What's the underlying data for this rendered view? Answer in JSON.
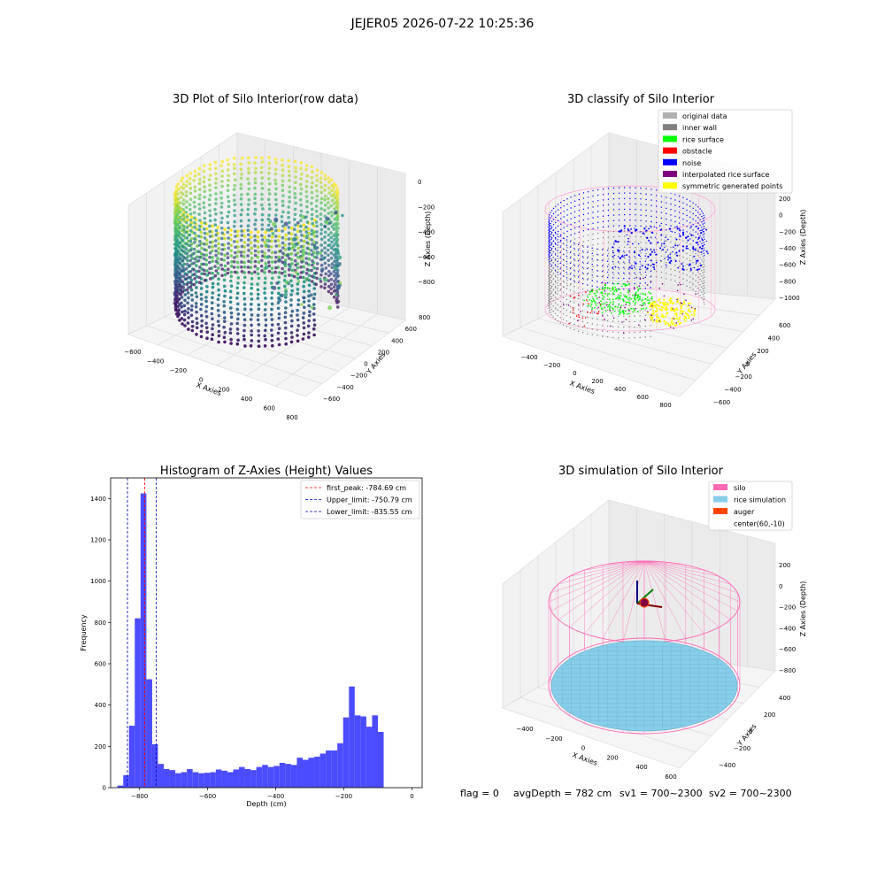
{
  "suptitle": "JEJER05 2026-07-22 10:25:36",
  "footer": {
    "flag": "flag = 0",
    "avg_depth": "avgDepth = 782 cm",
    "sv1": "sv1 = 700~2300",
    "sv2": "sv2 = 700~2300"
  },
  "chart_data": [
    {
      "type": "scatter",
      "projection": "3d",
      "title": "3D Plot of Silo Interior(row data)",
      "xlabel": "X Axies",
      "ylabel": "Y Axies",
      "zlabel": "Z Axies (Depth)",
      "x_ticks": [
        "−600",
        "−400",
        "−200",
        "0",
        "200",
        "400",
        "600",
        "800"
      ],
      "y_ticks": [
        "−600",
        "−400",
        "−200",
        "0",
        "200",
        "400",
        "600",
        "800"
      ],
      "z_ticks": [
        "0",
        "−200",
        "−400",
        "−600",
        "−800"
      ],
      "colormap": "viridis"
    },
    {
      "type": "scatter",
      "projection": "3d",
      "title": "3D classify of Silo Interior",
      "xlabel": "X Axies",
      "ylabel": "Y Axies",
      "zlabel": "Z Axies (Depth)",
      "x_ticks": [
        "−400",
        "−200",
        "0",
        "200",
        "400",
        "600",
        "800"
      ],
      "y_ticks": [
        "−600",
        "−400",
        "−200",
        "0",
        "200",
        "400",
        "600"
      ],
      "z_ticks": [
        "200",
        "0",
        "−200",
        "−400",
        "−600",
        "−800",
        "−1000"
      ],
      "legend": [
        {
          "label": "original data",
          "color": "#b0b0b0"
        },
        {
          "label": "inner wall",
          "color": "#808080"
        },
        {
          "label": "rice surface",
          "color": "#00ff00"
        },
        {
          "label": "obstacle",
          "color": "#ff0000"
        },
        {
          "label": "noise",
          "color": "#0000ff"
        },
        {
          "label": "interpolated rice surface",
          "color": "#800080"
        },
        {
          "label": "symmetric generated points",
          "color": "#ffff00"
        }
      ],
      "legend_loc": "upper right"
    },
    {
      "type": "bar",
      "title": "Histogram of Z-Axies (Height) Values",
      "xlabel": "Depth (cm)",
      "ylabel": "Frequency",
      "xlim": [
        -885,
        30
      ],
      "ylim": [
        0,
        1500
      ],
      "x_ticks": [
        -800,
        -600,
        -400,
        -200,
        0
      ],
      "x_tick_labels": [
        "−800",
        "−600",
        "−400",
        "−200",
        "0"
      ],
      "y_ticks": [
        0,
        200,
        400,
        600,
        800,
        1000,
        1200,
        1400
      ],
      "y_tick_labels": [
        "0",
        "200",
        "400",
        "600",
        "800",
        "1000",
        "1200",
        "1400"
      ],
      "bar_color": "#4b4bff",
      "bin_start": -865,
      "bin_width": 17,
      "values": [
        10,
        60,
        300,
        820,
        1425,
        525,
        210,
        115,
        90,
        85,
        70,
        75,
        90,
        75,
        70,
        72,
        75,
        88,
        82,
        75,
        88,
        100,
        90,
        85,
        100,
        110,
        100,
        105,
        120,
        115,
        110,
        145,
        135,
        145,
        150,
        165,
        180,
        180,
        215,
        340,
        490,
        350,
        345,
        295,
        350,
        270
      ],
      "vlines": [
        {
          "x": -784.69,
          "color": "#ff0000",
          "label": "first_peak: -784.69 cm"
        },
        {
          "x": -750.79,
          "color": "#0000aa",
          "label": "Upper_limit: -750.79 cm"
        },
        {
          "x": -835.55,
          "color": "#0000aa",
          "label": "Lower_limit: -835.55 cm"
        }
      ],
      "legend_loc": "upper right"
    },
    {
      "type": "surface",
      "projection": "3d",
      "title": "3D simulation of Silo Interior",
      "xlabel": "X Axies",
      "ylabel": "Y Axies",
      "zlabel": "Z Axies (Depth)",
      "x_ticks": [
        "−400",
        "−200",
        "0",
        "200",
        "400",
        "600"
      ],
      "y_ticks": [
        "−400",
        "−200",
        "0",
        "200",
        "400"
      ],
      "z_ticks": [
        "200",
        "0",
        "−200",
        "−400",
        "−600",
        "−800"
      ],
      "legend": [
        {
          "label": "silo",
          "color": "#ff69b4"
        },
        {
          "label": "rice simulation",
          "color": "#87ceeb"
        },
        {
          "label": "auger",
          "color": "#ff4500"
        },
        {
          "label": "center(60,-10)",
          "color": ""
        }
      ],
      "legend_loc": "upper right"
    }
  ]
}
